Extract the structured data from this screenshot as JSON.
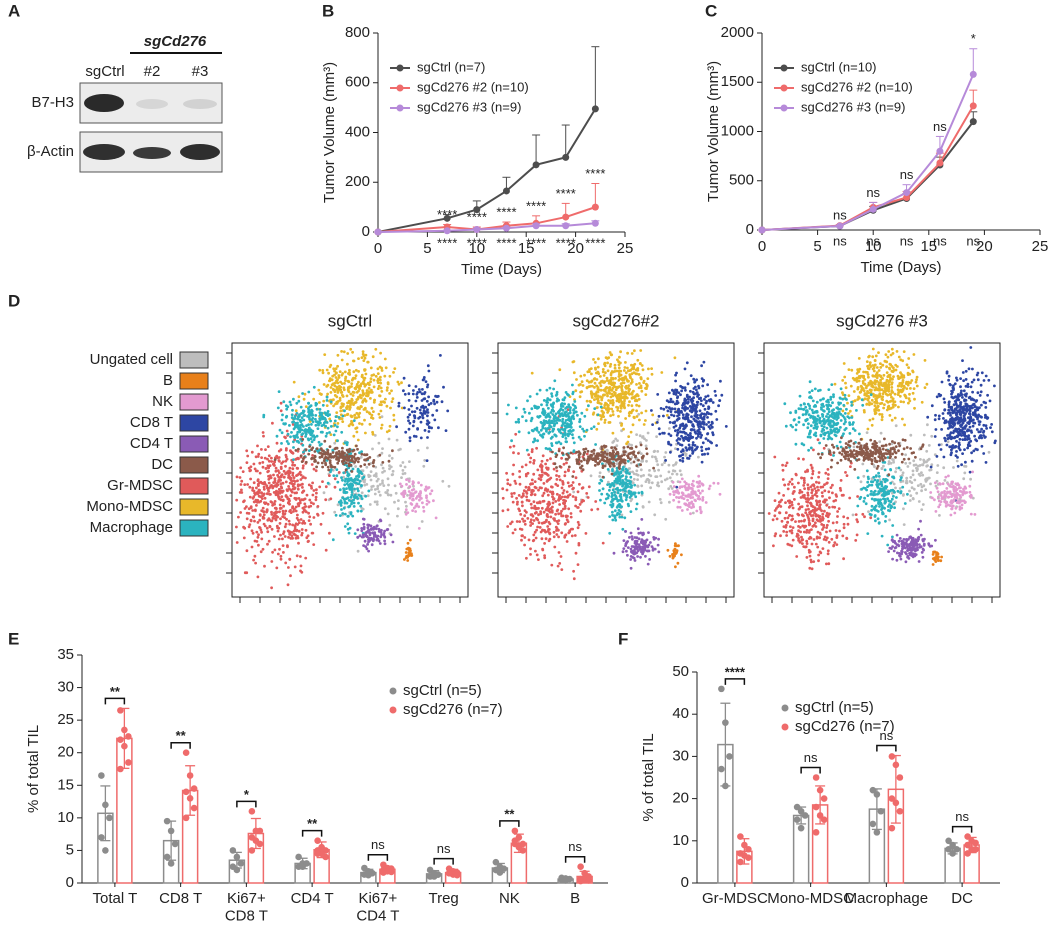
{
  "panel_labels": [
    "A",
    "B",
    "C",
    "D",
    "E",
    "F"
  ],
  "blot": {
    "group_label": "sgCd276",
    "lanes": [
      "sgCtrl",
      "#2",
      "#3"
    ],
    "rows": [
      "B7-H3",
      "β-Actin"
    ]
  },
  "tsne": {
    "titles": [
      "sgCtrl",
      "sgCd276#2",
      "sgCd276 #3"
    ],
    "populations": [
      {
        "name": "Ungated cell",
        "color": "#bdbdbd"
      },
      {
        "name": "B",
        "color": "#e8801a"
      },
      {
        "name": "NK",
        "color": "#e39ad0"
      },
      {
        "name": "CD8 T",
        "color": "#2d46a3"
      },
      {
        "name": "CD4 T",
        "color": "#8a5bb5"
      },
      {
        "name": "DC",
        "color": "#8b5a4a"
      },
      {
        "name": "Gr-MDSC",
        "color": "#e05a5a"
      },
      {
        "name": "Mono-MDSC",
        "color": "#e8b82a"
      },
      {
        "name": "Macrophage",
        "color": "#2bb3bf"
      }
    ]
  },
  "chart_data": [
    {
      "type": "line",
      "xlabel": "Time (Days)",
      "ylabel": "Tumor Volume (mm³)",
      "xlim": [
        0,
        25
      ],
      "xticks": [
        0,
        5,
        10,
        15,
        20,
        25
      ],
      "ylim": [
        0,
        800
      ],
      "yticks": [
        0,
        200,
        400,
        600,
        800
      ],
      "legend": "upper left",
      "x": [
        0,
        7,
        10,
        13,
        16,
        19,
        22
      ],
      "series": [
        {
          "name": "sgCtrl (n=7)",
          "color": "#4d4d4d",
          "values": [
            0,
            55,
            90,
            165,
            270,
            300,
            495
          ],
          "errors": [
            0,
            15,
            35,
            55,
            120,
            130,
            250
          ]
        },
        {
          "name": "sgCd276 #2 (n=10)",
          "color": "#ef6b6b",
          "values": [
            0,
            20,
            10,
            25,
            35,
            60,
            100
          ],
          "errors": [
            0,
            10,
            10,
            15,
            30,
            55,
            95
          ],
          "significance": [
            null,
            "****",
            "****",
            "****",
            "****",
            "****",
            "****"
          ],
          "significance_position": "above"
        },
        {
          "name": "sgCd276 #3 (n=9)",
          "color": "#b68ad9",
          "values": [
            0,
            5,
            10,
            15,
            25,
            25,
            35
          ],
          "errors": [
            0,
            3,
            5,
            5,
            8,
            8,
            10
          ],
          "significance": [
            null,
            "****",
            "****",
            "****",
            "****",
            "****",
            "****"
          ],
          "significance_position": "below"
        }
      ]
    },
    {
      "type": "line",
      "xlabel": "Time (Days)",
      "ylabel": "Tumor Volume (mm³)",
      "xlim": [
        0,
        25
      ],
      "xticks": [
        0,
        5,
        10,
        15,
        20,
        25
      ],
      "ylim": [
        0,
        2000
      ],
      "yticks": [
        0,
        500,
        1000,
        1500,
        2000
      ],
      "legend": "upper left",
      "x": [
        0,
        7,
        10,
        13,
        16,
        19
      ],
      "series": [
        {
          "name": "sgCtrl (n=10)",
          "color": "#4d4d4d",
          "values": [
            0,
            40,
            200,
            320,
            660,
            1100
          ],
          "errors": [
            0,
            10,
            40,
            50,
            80,
            100
          ]
        },
        {
          "name": "sgCd276 #2 (n=10)",
          "color": "#ef6b6b",
          "values": [
            0,
            45,
            230,
            330,
            680,
            1260
          ],
          "errors": [
            0,
            10,
            50,
            60,
            100,
            160
          ],
          "significance": [
            null,
            "ns",
            "ns",
            "ns",
            "ns",
            "ns"
          ],
          "significance_position": "below"
        },
        {
          "name": "sgCd276 #3 (n=9)",
          "color": "#b68ad9",
          "values": [
            0,
            40,
            210,
            380,
            800,
            1580
          ],
          "errors": [
            0,
            10,
            70,
            80,
            150,
            260
          ],
          "significance": [
            null,
            "ns",
            "ns",
            "ns",
            "ns",
            "*"
          ],
          "significance_position": "above"
        }
      ]
    },
    {
      "type": "bar",
      "ylabel": "% of total TIL",
      "ylim": [
        0,
        35
      ],
      "yticks": [
        0,
        5,
        10,
        15,
        20,
        25,
        30,
        35
      ],
      "legend": "upper right",
      "categories": [
        "Total T",
        "CD8 T",
        "Ki67+\nCD8 T",
        "CD4 T",
        "Ki67+\nCD4 T",
        "Treg",
        "NK",
        "B"
      ],
      "significance": [
        {
          "label": "**",
          "color": "#e02020"
        },
        {
          "label": "**",
          "color": "#e02020"
        },
        {
          "label": "*",
          "color": "#e02020"
        },
        {
          "label": "**",
          "color": "#e02020"
        },
        {
          "label": "ns",
          "color": "#222222"
        },
        {
          "label": "ns",
          "color": "#222222"
        },
        {
          "label": "**",
          "color": "#e02020"
        },
        {
          "label": "ns",
          "color": "#222222"
        }
      ],
      "series": [
        {
          "name": "sgCtrl (n=5)",
          "color": "#8c8c8c",
          "values": [
            10.7,
            6.5,
            3.5,
            3.0,
            1.6,
            1.4,
            2.3,
            0.6
          ],
          "errors": [
            4.2,
            3.0,
            1.2,
            0.8,
            0.5,
            0.5,
            0.7,
            0.2
          ],
          "points": [
            [
              16.5,
              12,
              10,
              7,
              5
            ],
            [
              9.5,
              8,
              6,
              4,
              3
            ],
            [
              5,
              4,
              3,
              2.5,
              2
            ],
            [
              4,
              3,
              3,
              2.5,
              2.5
            ],
            [
              2.3,
              1.8,
              1.5,
              1.3,
              1.2
            ],
            [
              2,
              1.5,
              1.3,
              1,
              1
            ],
            [
              3.2,
              2.5,
              2.2,
              2,
              1.6
            ],
            [
              0.8,
              0.7,
              0.6,
              0.5,
              0.4
            ]
          ]
        },
        {
          "name": "sgCd276 (n=7)",
          "color": "#ef6b6b",
          "values": [
            22.2,
            14.2,
            7.6,
            5.1,
            2.1,
            1.6,
            6.1,
            1.0
          ],
          "errors": [
            4.6,
            3.8,
            2.3,
            1.2,
            0.5,
            0.5,
            1.4,
            0.8
          ],
          "points": [
            [
              26.5,
              23.5,
              22.5,
              22,
              21,
              18.5,
              17.5
            ],
            [
              20,
              16.5,
              14.5,
              14,
              13,
              11.5,
              10
            ],
            [
              11,
              8,
              8,
              7,
              6.5,
              6,
              5
            ],
            [
              6.5,
              5.5,
              5,
              5,
              4.5,
              4,
              4.5
            ],
            [
              2.8,
              2.3,
              2.2,
              2,
              1.8,
              1.7,
              1.6
            ],
            [
              2.2,
              1.8,
              1.6,
              1.5,
              1.3,
              1.2,
              1.5
            ],
            [
              8,
              7,
              6,
              6,
              5.5,
              5,
              6.5
            ],
            [
              2.5,
              1.5,
              1,
              0.6,
              0.5,
              0.4,
              0.3
            ]
          ]
        }
      ]
    },
    {
      "type": "bar",
      "ylabel": "% of total TIL",
      "ylim": [
        0,
        50
      ],
      "yticks": [
        0,
        10,
        20,
        30,
        40,
        50
      ],
      "legend": "upper right",
      "categories": [
        "Gr-MDSC",
        "Mono-MDSC",
        "Macrophage",
        "DC"
      ],
      "significance": [
        {
          "label": "****",
          "color": "#e02020"
        },
        {
          "label": "ns",
          "color": "#222222"
        },
        {
          "label": "ns",
          "color": "#222222"
        },
        {
          "label": "ns",
          "color": "#222222"
        }
      ],
      "series": [
        {
          "name": "sgCtrl (n=5)",
          "color": "#8c8c8c",
          "values": [
            32.8,
            16,
            17.5,
            8.2
          ],
          "errors": [
            9.8,
            2,
            4.8,
            1.3
          ],
          "points": [
            [
              46,
              38,
              30,
              27,
              23
            ],
            [
              18,
              17,
              16,
              15,
              13
            ],
            [
              22,
              21,
              17,
              14,
              12
            ],
            [
              10,
              9,
              8,
              8,
              7
            ]
          ]
        },
        {
          "name": "sgCd276 (n=7)",
          "color": "#ef6b6b",
          "values": [
            7.5,
            18.5,
            22.2,
            9.0
          ],
          "errors": [
            3,
            4.5,
            8,
            1.8
          ],
          "points": [
            [
              11,
              9,
              8,
              7,
              6.5,
              6,
              5
            ],
            [
              25,
              22,
              20,
              18,
              16,
              15,
              12
            ],
            [
              30,
              28,
              25,
              20,
              19,
              17,
              13
            ],
            [
              11,
              10,
              9.5,
              9,
              8,
              8,
              7
            ]
          ]
        }
      ]
    }
  ]
}
